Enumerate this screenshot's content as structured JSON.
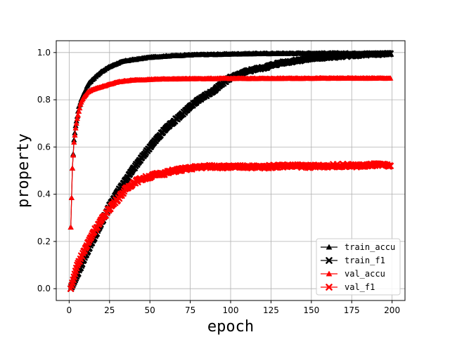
{
  "chart_data": {
    "type": "line",
    "xlabel": "epoch",
    "ylabel": "property",
    "xlim": [
      -8,
      208
    ],
    "ylim": [
      -0.05,
      1.05
    ],
    "xticks": [
      0,
      25,
      50,
      75,
      100,
      125,
      150,
      175,
      200
    ],
    "yticks": [
      0.0,
      0.2,
      0.4,
      0.6,
      0.8,
      1.0
    ],
    "xtick_labels": [
      "0",
      "25",
      "50",
      "75",
      "100",
      "125",
      "150",
      "175",
      "200"
    ],
    "ytick_labels": [
      "0.0",
      "0.2",
      "0.4",
      "0.6",
      "0.8",
      "1.0"
    ],
    "grid": true,
    "legend_position": "lower-right",
    "series": [
      {
        "name": "train_accu",
        "color": "#000000",
        "marker": "triangle",
        "points": [
          [
            1,
            0.26
          ],
          [
            2,
            0.51
          ],
          [
            3,
            0.63
          ],
          [
            4,
            0.69
          ],
          [
            5,
            0.73
          ],
          [
            6,
            0.77
          ],
          [
            7,
            0.79
          ],
          [
            8,
            0.81
          ],
          [
            10,
            0.84
          ],
          [
            12,
            0.87
          ],
          [
            15,
            0.89
          ],
          [
            20,
            0.92
          ],
          [
            25,
            0.94
          ],
          [
            30,
            0.955
          ],
          [
            35,
            0.965
          ],
          [
            40,
            0.97
          ],
          [
            50,
            0.98
          ],
          [
            60,
            0.985
          ],
          [
            75,
            0.99
          ],
          [
            90,
            0.992
          ],
          [
            110,
            0.995
          ],
          [
            130,
            0.996
          ],
          [
            150,
            0.997
          ],
          [
            175,
            0.997
          ],
          [
            199,
            0.998
          ]
        ]
      },
      {
        "name": "train_f1",
        "color": "#000000",
        "marker": "x",
        "points": [
          [
            1,
            0.0
          ],
          [
            3,
            0.03
          ],
          [
            5,
            0.06
          ],
          [
            10,
            0.14
          ],
          [
            15,
            0.21
          ],
          [
            20,
            0.28
          ],
          [
            25,
            0.35
          ],
          [
            30,
            0.41
          ],
          [
            35,
            0.46
          ],
          [
            40,
            0.51
          ],
          [
            45,
            0.555
          ],
          [
            50,
            0.6
          ],
          [
            55,
            0.64
          ],
          [
            60,
            0.68
          ],
          [
            65,
            0.71
          ],
          [
            70,
            0.74
          ],
          [
            75,
            0.77
          ],
          [
            80,
            0.8
          ],
          [
            85,
            0.82
          ],
          [
            90,
            0.84
          ],
          [
            95,
            0.87
          ],
          [
            100,
            0.895
          ],
          [
            105,
            0.905
          ],
          [
            110,
            0.92
          ],
          [
            115,
            0.93
          ],
          [
            120,
            0.935
          ],
          [
            130,
            0.955
          ],
          [
            140,
            0.965
          ],
          [
            150,
            0.975
          ],
          [
            160,
            0.98
          ],
          [
            175,
            0.988
          ],
          [
            190,
            0.993
          ],
          [
            199,
            0.995
          ]
        ]
      },
      {
        "name": "val_accu",
        "color": "#ff0000",
        "marker": "triangle",
        "points": [
          [
            1,
            0.26
          ],
          [
            2,
            0.51
          ],
          [
            3,
            0.62
          ],
          [
            4,
            0.68
          ],
          [
            5,
            0.72
          ],
          [
            6,
            0.75
          ],
          [
            7,
            0.78
          ],
          [
            8,
            0.8
          ],
          [
            10,
            0.82
          ],
          [
            12,
            0.835
          ],
          [
            15,
            0.845
          ],
          [
            20,
            0.855
          ],
          [
            25,
            0.865
          ],
          [
            30,
            0.875
          ],
          [
            35,
            0.88
          ],
          [
            40,
            0.883
          ],
          [
            50,
            0.886
          ],
          [
            60,
            0.888
          ],
          [
            75,
            0.889
          ],
          [
            100,
            0.89
          ],
          [
            125,
            0.89
          ],
          [
            150,
            0.891
          ],
          [
            175,
            0.891
          ],
          [
            199,
            0.891
          ]
        ]
      },
      {
        "name": "val_f1",
        "color": "#ff0000",
        "marker": "x",
        "points": [
          [
            1,
            0.0
          ],
          [
            3,
            0.05
          ],
          [
            5,
            0.1
          ],
          [
            10,
            0.17
          ],
          [
            15,
            0.24
          ],
          [
            20,
            0.29
          ],
          [
            25,
            0.34
          ],
          [
            30,
            0.38
          ],
          [
            35,
            0.42
          ],
          [
            40,
            0.45
          ],
          [
            45,
            0.465
          ],
          [
            50,
            0.475
          ],
          [
            55,
            0.485
          ],
          [
            60,
            0.49
          ],
          [
            65,
            0.5
          ],
          [
            70,
            0.505
          ],
          [
            75,
            0.51
          ],
          [
            80,
            0.515
          ],
          [
            90,
            0.518
          ],
          [
            100,
            0.515
          ],
          [
            110,
            0.517
          ],
          [
            120,
            0.515
          ],
          [
            130,
            0.52
          ],
          [
            140,
            0.52
          ],
          [
            150,
            0.518
          ],
          [
            160,
            0.52
          ],
          [
            170,
            0.522
          ],
          [
            180,
            0.52
          ],
          [
            190,
            0.525
          ],
          [
            199,
            0.52
          ]
        ]
      }
    ]
  }
}
